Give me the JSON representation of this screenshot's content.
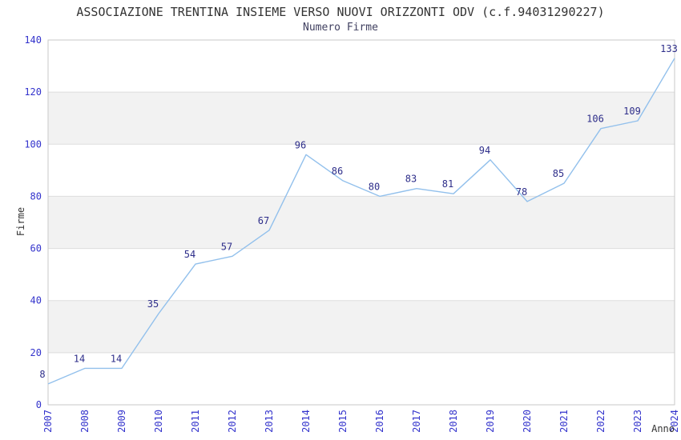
{
  "title": "ASSOCIAZIONE TRENTINA INSIEME VERSO NUOVI ORIZZONTI ODV (c.f.94031290227)",
  "subtitle": "Numero Firme",
  "chart_data": {
    "type": "line",
    "title": "ASSOCIAZIONE TRENTINA INSIEME VERSO NUOVI ORIZZONTI ODV (c.f.94031290227)",
    "subtitle": "Numero Firme",
    "x": [
      "2007",
      "2008",
      "2009",
      "2010",
      "2011",
      "2012",
      "2013",
      "2014",
      "2015",
      "2016",
      "2017",
      "2018",
      "2019",
      "2020",
      "2021",
      "2022",
      "2023",
      "2024"
    ],
    "values": [
      8,
      14,
      14,
      35,
      54,
      57,
      67,
      96,
      86,
      80,
      83,
      81,
      94,
      78,
      85,
      106,
      109,
      133
    ],
    "xlabel": "Anno",
    "ylabel": "Firme",
    "ylim": [
      0,
      140
    ],
    "yticks": [
      0,
      20,
      40,
      60,
      80,
      100,
      120,
      140
    ],
    "legend": "none",
    "grid": "horizontal gridlines with alternating gray bands",
    "point_labels_visible": true,
    "colors": {
      "line": "#92c0ec",
      "point_label": "#2e2e8a",
      "tick_label": "#3333cc",
      "axis_title": "#333333",
      "band_fill": "#f2f2f2",
      "gridline": "#dddddd",
      "plot_border": "#c9c9c9",
      "background": "#ffffff"
    }
  }
}
